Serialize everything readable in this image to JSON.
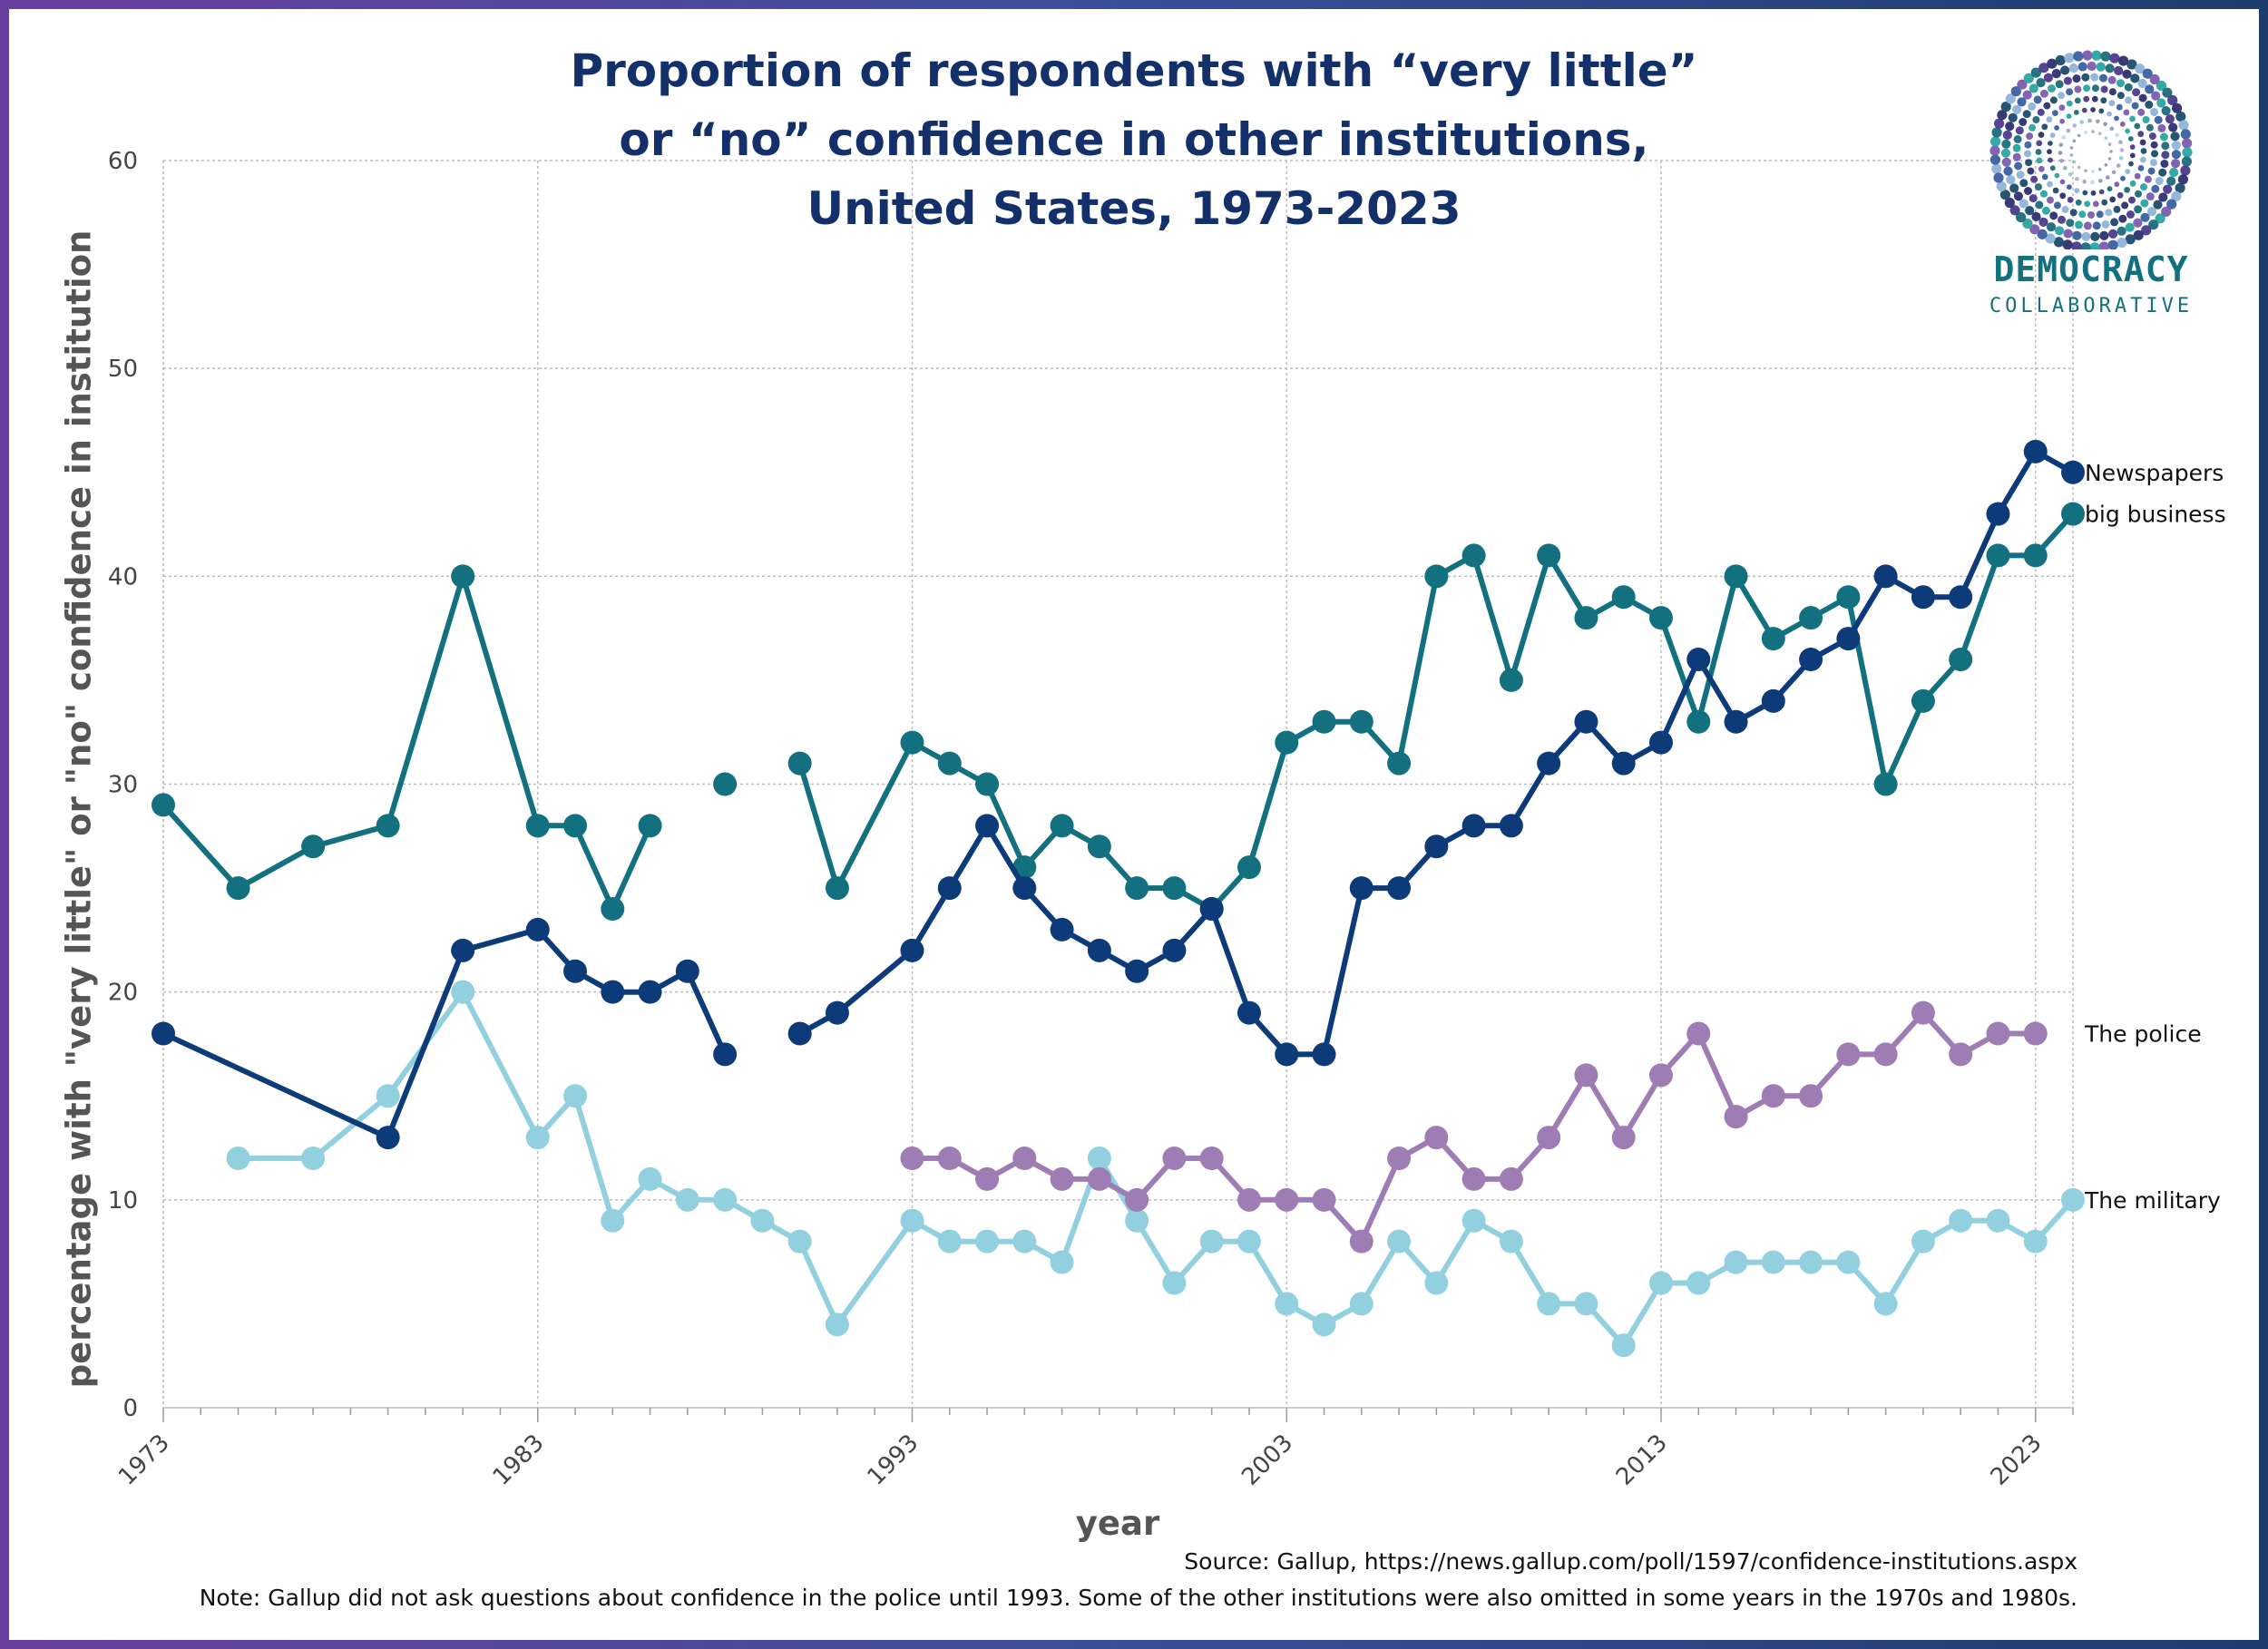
{
  "title_lines": [
    "Proportion of respondents with “very little”",
    "or “no” confidence in other institutions,",
    "United States, 1973-2023"
  ],
  "source": "Source: Gallup, https://news.gallup.com/poll/1597/confidence-institutions.aspx",
  "note": "Note: Gallup did not ask questions about confidence in the police until 1993. Some of the other institutions were also omitted in some years in the 1970s and 1980s.",
  "logo": {
    "line1": "DEMOCRACY",
    "line2": "COLLABORATIVE",
    "icon": "radial-dots-logo-icon"
  },
  "chart_data": {
    "type": "line",
    "title": "Proportion of respondents with “very little” or “no” confidence in other institutions, United States, 1973-2023",
    "xlabel": "year",
    "ylabel": "percentage with \"very little\" or \"no\" confidence in institution",
    "xlim": [
      1973,
      2024
    ],
    "ylim": [
      0,
      60
    ],
    "x_ticks": [
      1973,
      1983,
      1993,
      2003,
      2013,
      2023
    ],
    "y_ticks": [
      0,
      10,
      20,
      30,
      40,
      50,
      60
    ],
    "grid": true,
    "legend": "labels at line ends, right",
    "series": [
      {
        "name": "Newspapers",
        "color": "#0d3b7a",
        "points": [
          [
            1973,
            18
          ],
          [
            1979,
            13
          ],
          [
            1981,
            22
          ],
          [
            1983,
            23
          ],
          [
            1984,
            21
          ],
          [
            1985,
            20
          ],
          [
            1986,
            20
          ],
          [
            1987,
            21
          ],
          [
            1988,
            17
          ],
          [
            null,
            null
          ],
          [
            1990,
            18
          ],
          [
            1991,
            19
          ],
          [
            1993,
            22
          ],
          [
            1994,
            25
          ],
          [
            1995,
            28
          ],
          [
            1996,
            25
          ],
          [
            1997,
            23
          ],
          [
            1998,
            22
          ],
          [
            1999,
            21
          ],
          [
            2000,
            22
          ],
          [
            2001,
            24
          ],
          [
            2002,
            19
          ],
          [
            2003,
            17
          ],
          [
            2004,
            17
          ],
          [
            2005,
            25
          ],
          [
            2006,
            25
          ],
          [
            2007,
            27
          ],
          [
            2008,
            28
          ],
          [
            2009,
            28
          ],
          [
            2010,
            31
          ],
          [
            2011,
            33
          ],
          [
            2012,
            31
          ],
          [
            2013,
            32
          ],
          [
            2014,
            36
          ],
          [
            2015,
            33
          ],
          [
            2016,
            34
          ],
          [
            2017,
            36
          ],
          [
            2018,
            37
          ],
          [
            2019,
            40
          ],
          [
            2020,
            39
          ],
          [
            2021,
            39
          ],
          [
            2022,
            43
          ],
          [
            2023,
            46
          ],
          [
            2024,
            45
          ]
        ]
      },
      {
        "name": "big business",
        "color": "#13707e",
        "points": [
          [
            1973,
            29
          ],
          [
            1975,
            25
          ],
          [
            1977,
            27
          ],
          [
            1979,
            28
          ],
          [
            1981,
            40
          ],
          [
            1983,
            28
          ],
          [
            1984,
            28
          ],
          [
            1985,
            24
          ],
          [
            1986,
            28
          ],
          [
            null,
            null
          ],
          [
            1988,
            30
          ],
          [
            null,
            null
          ],
          [
            1990,
            31
          ],
          [
            1991,
            25
          ],
          [
            1993,
            32
          ],
          [
            1994,
            31
          ],
          [
            1995,
            30
          ],
          [
            1996,
            26
          ],
          [
            1997,
            28
          ],
          [
            1998,
            27
          ],
          [
            1999,
            25
          ],
          [
            2000,
            25
          ],
          [
            2001,
            24
          ],
          [
            2002,
            26
          ],
          [
            2003,
            32
          ],
          [
            2004,
            33
          ],
          [
            2005,
            33
          ],
          [
            2006,
            31
          ],
          [
            2007,
            40
          ],
          [
            2008,
            41
          ],
          [
            2009,
            35
          ],
          [
            2010,
            41
          ],
          [
            2011,
            38
          ],
          [
            2012,
            39
          ],
          [
            2013,
            38
          ],
          [
            2014,
            33
          ],
          [
            2015,
            40
          ],
          [
            2016,
            37
          ],
          [
            2017,
            38
          ],
          [
            2018,
            39
          ],
          [
            2019,
            30
          ],
          [
            2020,
            34
          ],
          [
            2021,
            36
          ],
          [
            2022,
            41
          ],
          [
            2023,
            41
          ],
          [
            2024,
            43
          ]
        ]
      },
      {
        "name": "The police",
        "color": "#9d7db4",
        "points": [
          [
            1993,
            12
          ],
          [
            1994,
            12
          ],
          [
            1995,
            11
          ],
          [
            1996,
            12
          ],
          [
            1997,
            11
          ],
          [
            1998,
            11
          ],
          [
            1999,
            10
          ],
          [
            2000,
            12
          ],
          [
            2001,
            12
          ],
          [
            2002,
            10
          ],
          [
            2003,
            10
          ],
          [
            2004,
            10
          ],
          [
            2005,
            8
          ],
          [
            2006,
            12
          ],
          [
            2007,
            13
          ],
          [
            2008,
            11
          ],
          [
            2009,
            11
          ],
          [
            2010,
            13
          ],
          [
            2011,
            16
          ],
          [
            2012,
            13
          ],
          [
            2013,
            16
          ],
          [
            2014,
            18
          ],
          [
            2015,
            14
          ],
          [
            2016,
            15
          ],
          [
            2017,
            15
          ],
          [
            2018,
            17
          ],
          [
            2019,
            17
          ],
          [
            2020,
            19
          ],
          [
            2021,
            17
          ],
          [
            2022,
            18
          ],
          [
            2023,
            18
          ]
        ]
      },
      {
        "name": "The military",
        "color": "#92d0e0",
        "points": [
          [
            1975,
            12
          ],
          [
            1977,
            12
          ],
          [
            1979,
            15
          ],
          [
            1981,
            20
          ],
          [
            1983,
            13
          ],
          [
            1984,
            15
          ],
          [
            1985,
            9
          ],
          [
            1986,
            11
          ],
          [
            1987,
            10
          ],
          [
            1988,
            10
          ],
          [
            1989,
            9
          ],
          [
            1990,
            8
          ],
          [
            1991,
            4
          ],
          [
            1993,
            9
          ],
          [
            1994,
            8
          ],
          [
            1995,
            8
          ],
          [
            1996,
            8
          ],
          [
            1997,
            7
          ],
          [
            1998,
            12
          ],
          [
            1999,
            9
          ],
          [
            2000,
            6
          ],
          [
            2001,
            8
          ],
          [
            2002,
            8
          ],
          [
            2003,
            5
          ],
          [
            2004,
            4
          ],
          [
            2005,
            5
          ],
          [
            2006,
            8
          ],
          [
            2007,
            6
          ],
          [
            2008,
            9
          ],
          [
            2009,
            8
          ],
          [
            2010,
            5
          ],
          [
            2011,
            5
          ],
          [
            2012,
            3
          ],
          [
            2013,
            6
          ],
          [
            2014,
            6
          ],
          [
            2015,
            7
          ],
          [
            2016,
            7
          ],
          [
            2017,
            7
          ],
          [
            2018,
            7
          ],
          [
            2019,
            5
          ],
          [
            2020,
            8
          ],
          [
            2021,
            9
          ],
          [
            2022,
            9
          ],
          [
            2023,
            8
          ],
          [
            2024,
            10
          ]
        ]
      }
    ]
  }
}
